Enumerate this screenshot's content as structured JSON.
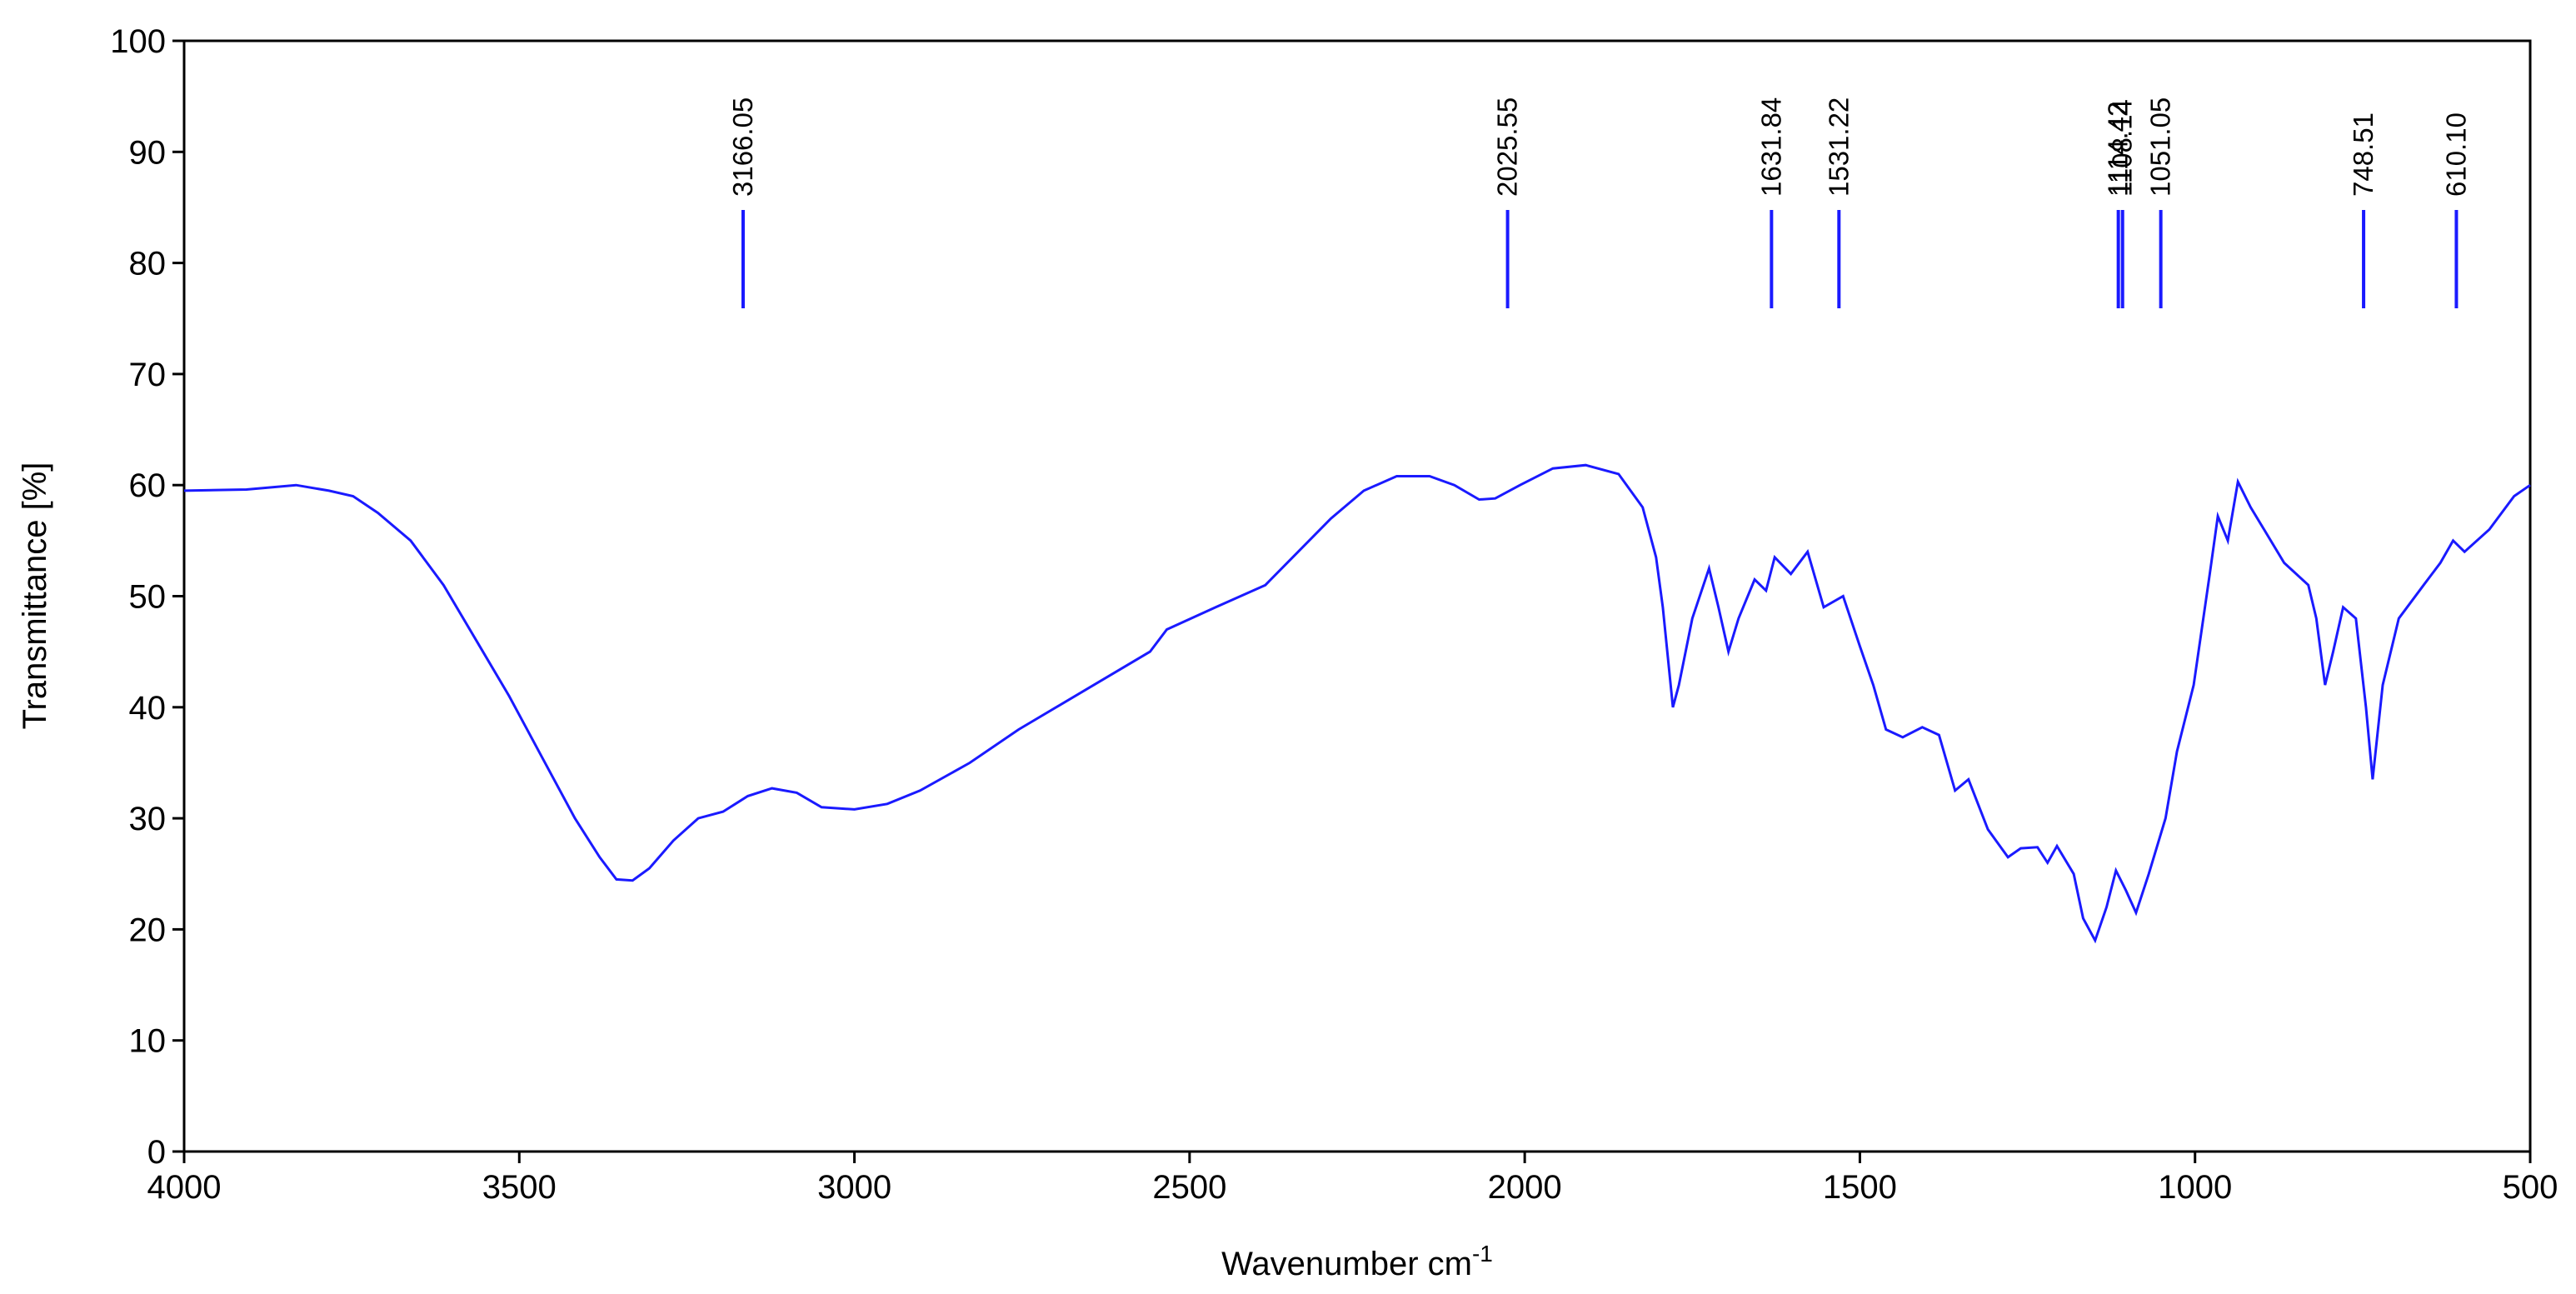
{
  "chart_data": {
    "type": "line",
    "y_label": "Transmittance [%]",
    "x_label": "Wavenumber cm",
    "x_label_superscript": "-1",
    "xlim": [
      4000,
      500
    ],
    "ylim": [
      0,
      100
    ],
    "xticks": [
      4000,
      3500,
      3000,
      2500,
      2000,
      1500,
      1000,
      500
    ],
    "yticks": [
      0,
      10,
      20,
      30,
      40,
      50,
      60,
      70,
      80,
      90,
      100
    ],
    "grid": false,
    "x": [
      4000,
      3907,
      3833,
      3784,
      3748,
      3711,
      3662,
      3613,
      3564,
      3515,
      3466,
      3417,
      3380,
      3355,
      3331,
      3306,
      3270,
      3233,
      3196,
      3159,
      3123,
      3086,
      3049,
      3000,
      2951,
      2902,
      2828,
      2755,
      2657,
      2559,
      2534,
      2461,
      2387,
      2338,
      2289,
      2240,
      2191,
      2142,
      2105,
      2068,
      2044,
      2007,
      1958,
      1909,
      1860,
      1824,
      1804,
      1794,
      1779,
      1770,
      1750,
      1725,
      1711,
      1696,
      1681,
      1657,
      1640,
      1627,
      1603,
      1578,
      1554,
      1525,
      1500,
      1480,
      1461,
      1436,
      1407,
      1382,
      1358,
      1338,
      1309,
      1279,
      1260,
      1235,
      1220,
      1206,
      1181,
      1167,
      1149,
      1132,
      1118,
      1103,
      1088,
      1069,
      1044,
      1027,
      1002,
      978,
      966,
      951,
      936,
      917,
      897,
      867,
      831,
      819,
      806,
      794,
      779,
      760,
      745,
      735,
      720,
      696,
      659,
      634,
      615,
      598,
      561,
      524,
      500
    ],
    "series": [
      {
        "name": "Transmittance",
        "color": "#1a1aff",
        "values": [
          59.5,
          59.6,
          60,
          59.5,
          59,
          57.5,
          55,
          51,
          46,
          41,
          35.5,
          30,
          26.5,
          24.5,
          24.4,
          25.5,
          28,
          30,
          30.6,
          32,
          32.7,
          32.3,
          31,
          30.8,
          31.3,
          32.5,
          35,
          38,
          41.5,
          45,
          47,
          49,
          51,
          54,
          57,
          59.5,
          60.8,
          60.8,
          60,
          58.7,
          58.8,
          60,
          61.5,
          61.8,
          61,
          58,
          53.5,
          49,
          40,
          42,
          48,
          52.5,
          49,
          45,
          48,
          51.5,
          50.5,
          53.5,
          52,
          54,
          49,
          50,
          45.5,
          42,
          38,
          37.3,
          38.2,
          37.5,
          32.5,
          33.5,
          29,
          26.5,
          27.3,
          27.4,
          26,
          27.5,
          25,
          21,
          19,
          22,
          25.3,
          23.5,
          21.5,
          25,
          30,
          36,
          42,
          52,
          57.2,
          55,
          60.3,
          58,
          56,
          53,
          51,
          48,
          42,
          45,
          49,
          48,
          40,
          33.5,
          42,
          48,
          51,
          53,
          55,
          54,
          56,
          59,
          60
        ]
      }
    ],
    "peak_labels": [
      {
        "value": 3166.05,
        "label": "3166.05"
      },
      {
        "value": 2025.55,
        "label": "2025.55"
      },
      {
        "value": 1631.84,
        "label": "1631.84"
      },
      {
        "value": 1531.22,
        "label": "1531.22"
      },
      {
        "value": 1114.42,
        "label": "1114.42"
      },
      {
        "value": 1108.14,
        "label": "1108.14"
      },
      {
        "value": 1051.05,
        "label": "1051.05"
      },
      {
        "value": 748.51,
        "label": "748.51"
      },
      {
        "value": 610.1,
        "label": "610.10"
      }
    ]
  }
}
